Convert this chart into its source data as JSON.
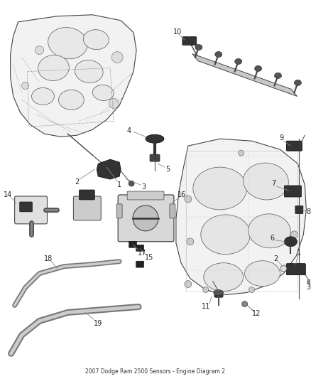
{
  "bg_color": "#ffffff",
  "figsize": [
    4.38,
    5.33
  ],
  "dpi": 100,
  "part_fill": "#f0f0f0",
  "part_edge": "#333333",
  "part_lw": 0.7,
  "sensor_fill": "#222222",
  "sensor_edge": "#111111",
  "label_fontsize": 7.0,
  "label_color": "#222222",
  "line_color": "#555555",
  "callout_line_color": "#888888"
}
